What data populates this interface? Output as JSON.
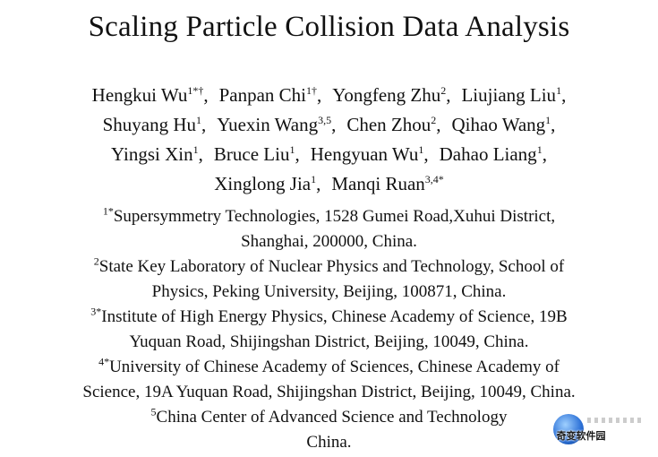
{
  "title": "Scaling Particle Collision Data Analysis",
  "author_lines": [
    [
      {
        "name": "Hengkui Wu",
        "sup": "1*†",
        "sep": ","
      },
      {
        "name": "Panpan Chi",
        "sup": "1†",
        "sep": ","
      },
      {
        "name": "Yongfeng Zhu",
        "sup": "2",
        "sep": ","
      },
      {
        "name": "Liujiang Liu",
        "sup": "1",
        "sep": ","
      }
    ],
    [
      {
        "name": "Shuyang Hu",
        "sup": "1",
        "sep": ","
      },
      {
        "name": "Yuexin Wang",
        "sup": "3,5",
        "sep": ","
      },
      {
        "name": "Chen Zhou",
        "sup": "2",
        "sep": ","
      },
      {
        "name": "Qihao Wang",
        "sup": "1",
        "sep": ","
      }
    ],
    [
      {
        "name": "Yingsi Xin",
        "sup": "1",
        "sep": ","
      },
      {
        "name": "Bruce Liu",
        "sup": "1",
        "sep": ","
      },
      {
        "name": "Hengyuan Wu",
        "sup": "1",
        "sep": ","
      },
      {
        "name": "Dahao Liang",
        "sup": "1",
        "sep": ","
      }
    ],
    [
      {
        "name": "Xinglong Jia",
        "sup": "1",
        "sep": ","
      },
      {
        "name": "Manqi Ruan",
        "sup": "3,4*",
        "sep": ""
      }
    ]
  ],
  "affiliation_lines": [
    {
      "sup": "1*",
      "text": "Supersymmetry Technologies, 1528 Gumei Road,Xuhui District,"
    },
    {
      "sup": "",
      "text": "Shanghai, 200000, China."
    },
    {
      "sup": "2",
      "text": "State Key Laboratory of Nuclear Physics and Technology,  School of"
    },
    {
      "sup": "",
      "text": "Physics, Peking University,  Beijing, 100871, China."
    },
    {
      "sup": "3*",
      "text": "Institute of High Energy Physics, Chinese Academy of Science,  19B"
    },
    {
      "sup": "",
      "text": "Yuquan Road, Shijingshan District, Beijing, 10049, China."
    },
    {
      "sup": "4*",
      "text": "University of Chinese Academy of Sciences, Chinese Academy of"
    },
    {
      "sup": "",
      "text": "Science,  19A Yuquan Road, Shijingshan District, Beijing, 10049, China."
    },
    {
      "sup": "5",
      "text": "China Center of Advanced Science and Technology"
    },
    {
      "sup": "",
      "text": "China."
    }
  ],
  "watermark": {
    "text": "奇变软件园",
    "icon": "globe-logo-icon"
  }
}
